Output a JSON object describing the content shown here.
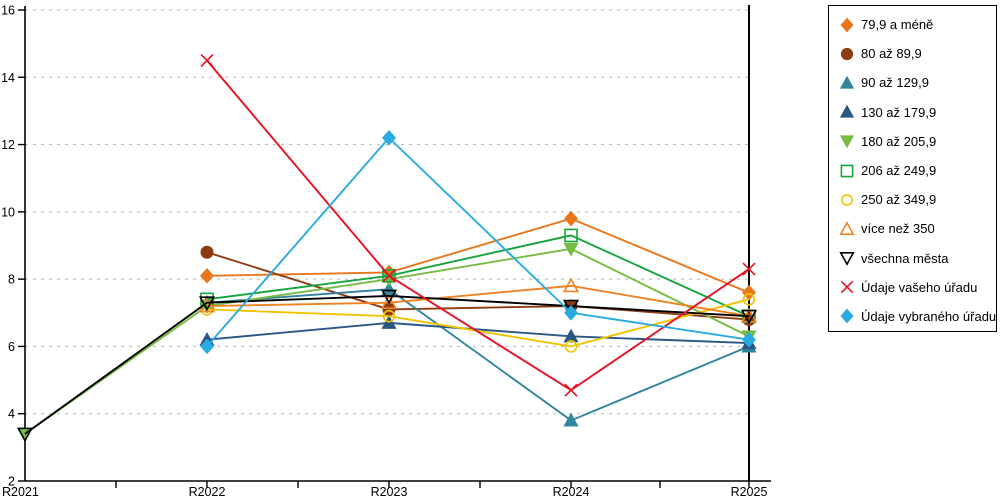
{
  "chart_data": {
    "type": "line",
    "title": "",
    "xlabel": "",
    "ylabel": "",
    "categories": [
      "R2021",
      "R2022",
      "R2023",
      "R2024",
      "R2025"
    ],
    "y_ticks": [
      2,
      4,
      6,
      8,
      10,
      12,
      14,
      16
    ],
    "ylim": [
      2,
      16
    ],
    "grid": "horizontal-dashed",
    "legend_position": "right",
    "series": [
      {
        "name": "79,9 a méně",
        "color": "#E8761B",
        "marker": "diamond",
        "fill": "solid",
        "values": [
          null,
          8.1,
          8.2,
          9.8,
          7.6
        ]
      },
      {
        "name": "80 až 89,9",
        "color": "#8E3B12",
        "marker": "circle",
        "fill": "solid",
        "values": [
          null,
          8.8,
          7.1,
          7.2,
          6.8
        ]
      },
      {
        "name": "90 až 129,9",
        "color": "#31859C",
        "marker": "triangle-up",
        "fill": "solid",
        "values": [
          null,
          7.3,
          7.7,
          3.8,
          6.0
        ]
      },
      {
        "name": "130 až 179,9",
        "color": "#2A5783",
        "marker": "triangle-up",
        "fill": "solid",
        "values": [
          null,
          6.2,
          6.7,
          6.3,
          6.1
        ]
      },
      {
        "name": "180 až 205,9",
        "color": "#76BC43",
        "marker": "triangle-down",
        "fill": "solid",
        "values": [
          3.4,
          7.2,
          8.0,
          8.9,
          6.3
        ]
      },
      {
        "name": "206 až 249,9",
        "color": "#16A53F",
        "marker": "square",
        "fill": "open",
        "values": [
          null,
          7.4,
          8.1,
          9.3,
          6.9
        ]
      },
      {
        "name": "250 až 349,9",
        "color": "#F0C300",
        "marker": "circle",
        "fill": "open",
        "values": [
          null,
          7.1,
          6.9,
          6.0,
          7.4
        ]
      },
      {
        "name": "více než 350",
        "color": "#F08223",
        "marker": "triangle-up",
        "fill": "open",
        "values": [
          null,
          7.2,
          7.3,
          7.8,
          6.9
        ]
      },
      {
        "name": "všechna města",
        "color": "#000000",
        "marker": "triangle-down",
        "fill": "open",
        "values": [
          3.4,
          7.3,
          7.5,
          7.2,
          6.9
        ]
      },
      {
        "name": "Údaje vašeho úřadu",
        "color": "#E81123",
        "marker": "x",
        "fill": "open",
        "values": [
          null,
          14.5,
          8.1,
          4.7,
          8.3
        ]
      },
      {
        "name": "Údaje vybraného úřadu",
        "color": "#29ABE2",
        "marker": "diamond",
        "fill": "solid",
        "values": [
          null,
          6.0,
          12.2,
          7.0,
          6.2
        ]
      }
    ],
    "axis_color": "#000000",
    "gridline_color": "#b5b5b5"
  }
}
